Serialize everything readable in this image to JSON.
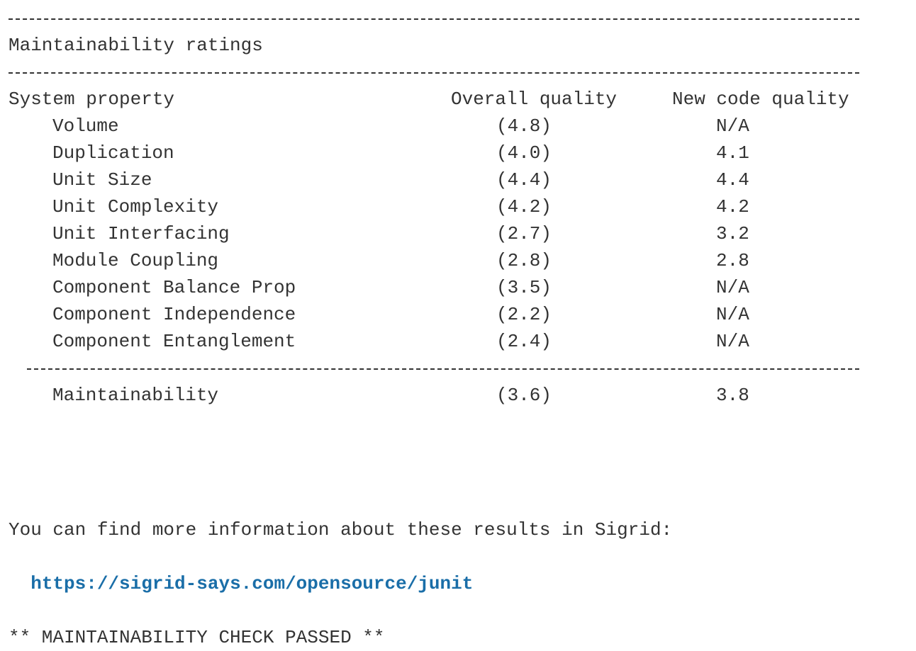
{
  "section_title": "Maintainability ratings",
  "columns": {
    "property": "System property",
    "overall": "Overall quality",
    "new_code": "New code quality"
  },
  "rows": [
    {
      "property": "Volume",
      "overall": "(4.8)",
      "new_code": "N/A"
    },
    {
      "property": "Duplication",
      "overall": "(4.0)",
      "new_code": "4.1"
    },
    {
      "property": "Unit Size",
      "overall": "(4.4)",
      "new_code": "4.4"
    },
    {
      "property": "Unit Complexity",
      "overall": "(4.2)",
      "new_code": "4.2"
    },
    {
      "property": "Unit Interfacing",
      "overall": "(2.7)",
      "new_code": "3.2"
    },
    {
      "property": "Module Coupling",
      "overall": "(2.8)",
      "new_code": "2.8"
    },
    {
      "property": "Component Balance Prop",
      "overall": "(3.5)",
      "new_code": "N/A"
    },
    {
      "property": "Component Independence",
      "overall": "(2.2)",
      "new_code": "N/A"
    },
    {
      "property": "Component Entanglement",
      "overall": "(2.4)",
      "new_code": "N/A"
    }
  ],
  "total": {
    "property": "Maintainability",
    "overall": "(3.6)",
    "new_code": "3.8"
  },
  "info_text": "You can find more information about these results in Sigrid:",
  "info_link": "https://sigrid-says.com/opensource/junit",
  "result_text": "** MAINTAINABILITY CHECK PASSED **"
}
